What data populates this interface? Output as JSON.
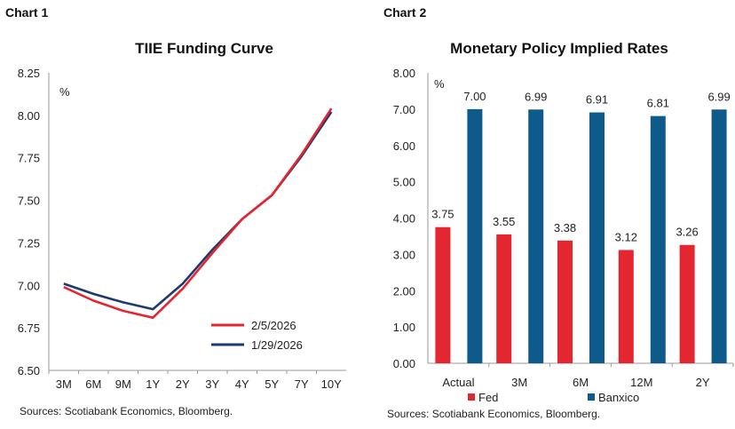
{
  "chart1": {
    "label": "Chart 1",
    "source": "Sources: Scotiabank Economics, Bloomberg.",
    "chart_data": {
      "type": "line",
      "title": "TIIE Funding Curve",
      "ylabel": "%",
      "xlabel": "",
      "categories": [
        "3M",
        "6M",
        "9M",
        "1Y",
        "2Y",
        "3Y",
        "4Y",
        "5Y",
        "7Y",
        "10Y"
      ],
      "ylim": [
        6.5,
        8.25
      ],
      "yticks": [
        "6.50",
        "6.75",
        "7.00",
        "7.25",
        "7.50",
        "7.75",
        "8.00",
        "8.25"
      ],
      "series": [
        {
          "name": "2/5/2026",
          "color": "#e3262f",
          "values": [
            6.99,
            6.91,
            6.85,
            6.81,
            6.98,
            7.19,
            7.39,
            7.53,
            7.77,
            8.04
          ]
        },
        {
          "name": "1/29/2026",
          "color": "#1f3a70",
          "values": [
            7.01,
            6.95,
            6.9,
            6.86,
            7.01,
            7.21,
            7.39,
            7.53,
            7.76,
            8.02
          ]
        }
      ]
    }
  },
  "chart2": {
    "label": "Chart 2",
    "source": "Sources: Scotiabank Economics, Bloomberg.",
    "chart_data": {
      "type": "bar",
      "title": "Monetary Policy Implied Rates",
      "ylabel": "%",
      "xlabel": "",
      "categories": [
        "Actual",
        "3M",
        "6M",
        "12M",
        "2Y"
      ],
      "ylim": [
        0,
        8
      ],
      "yticks": [
        "0.00",
        "1.00",
        "2.00",
        "3.00",
        "4.00",
        "5.00",
        "6.00",
        "7.00",
        "8.00"
      ],
      "series": [
        {
          "name": "Fed",
          "color": "#e3262f",
          "values": [
            3.75,
            3.55,
            3.38,
            3.12,
            3.26
          ],
          "labels": [
            "3.75",
            "3.55",
            "3.38",
            "3.12",
            "3.26"
          ]
        },
        {
          "name": "Banxico",
          "color": "#0e5a8a",
          "values": [
            7.0,
            6.99,
            6.91,
            6.81,
            6.99
          ],
          "labels": [
            "7.00",
            "6.99",
            "6.91",
            "6.81",
            "6.99"
          ]
        }
      ]
    }
  }
}
